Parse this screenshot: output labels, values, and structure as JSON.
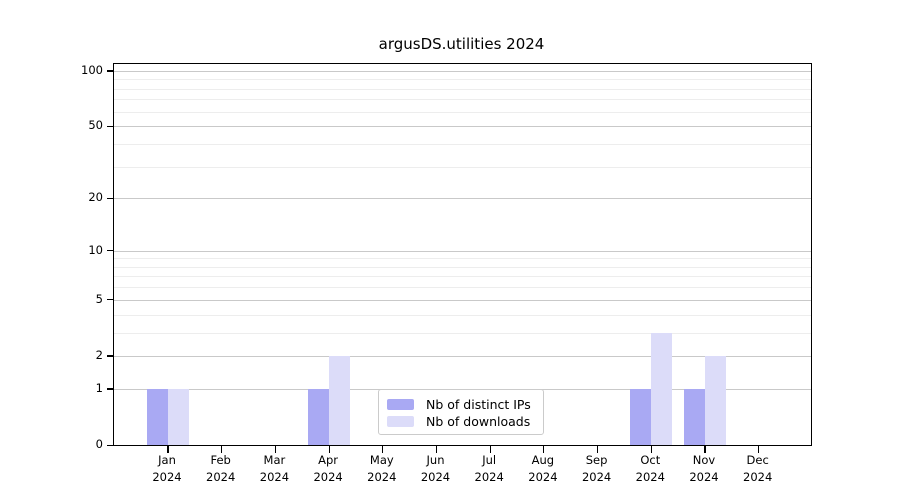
{
  "chart_data": {
    "type": "bar",
    "title": "argusDS.utilities 2024",
    "x": {
      "months": [
        "Jan",
        "Feb",
        "Mar",
        "Apr",
        "May",
        "Jun",
        "Jul",
        "Aug",
        "Sep",
        "Oct",
        "Nov",
        "Dec"
      ],
      "year": "2024"
    },
    "series": [
      {
        "name": "Nb of distinct IPs",
        "color": "#a9a9f3",
        "values": [
          1,
          0,
          0,
          1,
          0,
          0,
          0,
          0,
          0,
          1,
          1,
          0
        ]
      },
      {
        "name": "Nb of downloads",
        "color": "#dcdcf9",
        "values": [
          1,
          0,
          0,
          2,
          0,
          0,
          0,
          0,
          0,
          3,
          2,
          0
        ]
      }
    ],
    "y_axis": {
      "scale": "log1p",
      "major_ticks": [
        0,
        1,
        2,
        5,
        10,
        20,
        50,
        100
      ],
      "minor_ticks": [
        3,
        4,
        6,
        7,
        8,
        9,
        30,
        40,
        60,
        70,
        80,
        90
      ],
      "ymin": 0,
      "ymax": 109
    },
    "grid": {
      "major_color": "#c9c9c9",
      "minor_color": "#ededed"
    },
    "legend": {
      "position": "lower center"
    }
  }
}
